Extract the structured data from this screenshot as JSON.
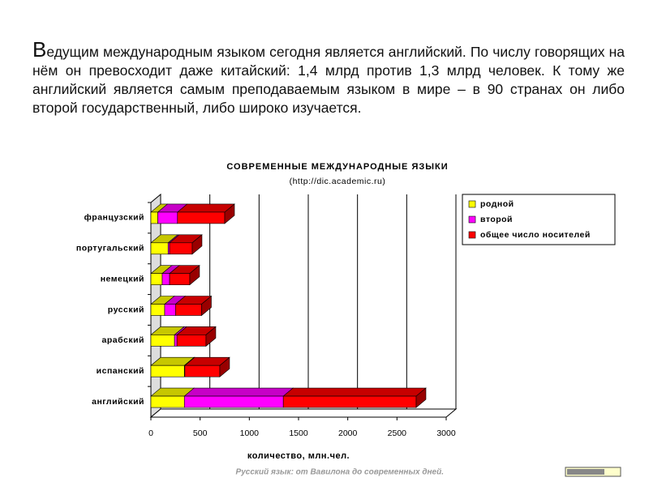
{
  "slide": {
    "text": "Ведущим международным языком сегодня является английский. По числу говорящих на нём он превосходит даже китайский: 1,4 млрд против 1,3 млрд человек. К тому же английский является самым преподаваемым языком в мире – в 90 странах он либо второй государственный, либо широко изучается.",
    "footer": "Русский язык: от Вавилона до современных дней."
  },
  "chart_data": {
    "type": "bar",
    "orientation": "horizontal",
    "stacked": true,
    "three_d": true,
    "title": "СОВРЕМЕННЫЕ МЕЖДУНАРОДНЫЕ ЯЗЫКИ",
    "subtitle": "(http://dic.academic.ru)",
    "x_label": "количество, млн.чел.",
    "categories": [
      "французский",
      "португальский",
      "немецкий",
      "русский",
      "арабский",
      "испанский",
      "английский"
    ],
    "series": [
      {
        "name": "родной",
        "color": "#ffff00",
        "values": [
          70,
          175,
          115,
          140,
          240,
          340,
          340
        ]
      },
      {
        "name": "второй",
        "color": "#ff00ff",
        "values": [
          200,
          15,
          75,
          110,
          25,
          5,
          1005
        ]
      },
      {
        "name": "общее число носителей",
        "color": "#ff0000",
        "values": [
          480,
          230,
          205,
          265,
          295,
          355,
          1350
        ]
      }
    ],
    "xlim": [
      0,
      3000
    ],
    "xticks": [
      0,
      500,
      1000,
      1500,
      2000,
      2500,
      3000
    ],
    "grid": true,
    "legend": "right"
  }
}
